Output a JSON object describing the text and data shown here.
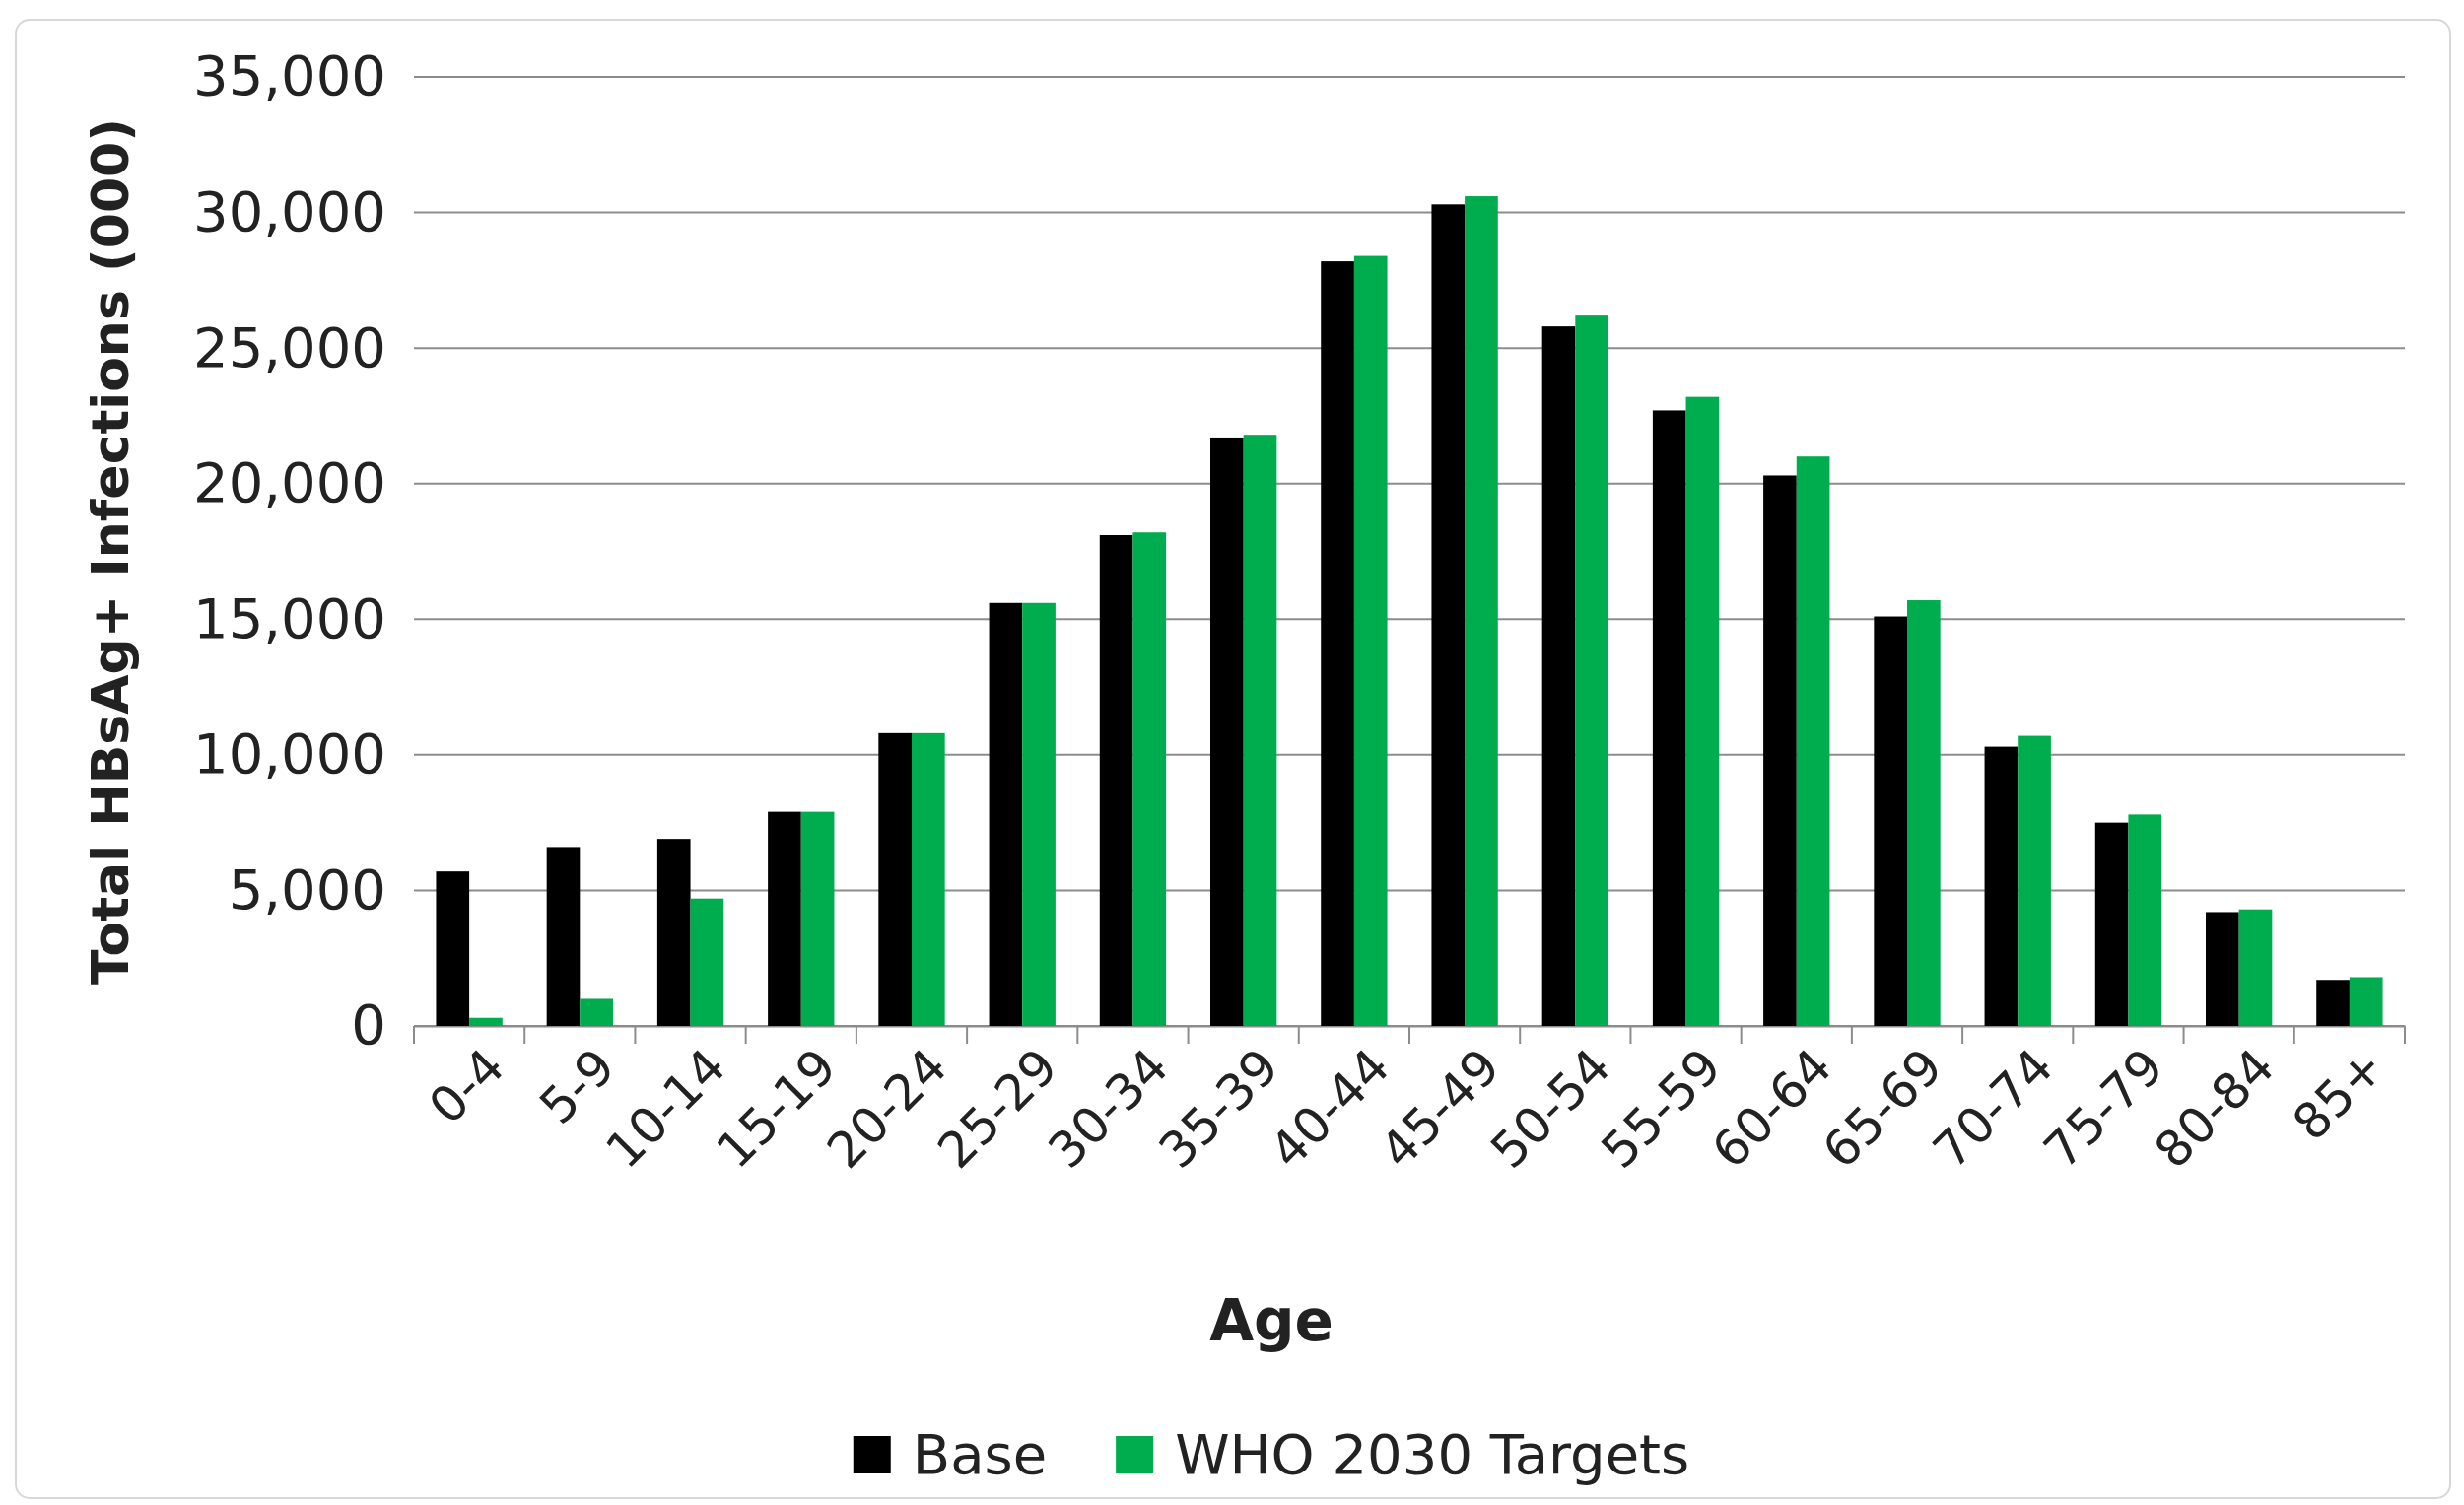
{
  "chart_data": {
    "type": "bar",
    "xlabel": "Age",
    "ylabel": "Total HBsAg+ Infections (000)",
    "categories": [
      "0-4",
      "5-9",
      "10-14",
      "15-19",
      "20-24",
      "25-29",
      "30-34",
      "35-39",
      "40-44",
      "45-49",
      "50-54",
      "55-59",
      "60-64",
      "65-69",
      "70-74",
      "75-79",
      "80-84",
      "85+"
    ],
    "series": [
      {
        "name": "Base",
        "color": "#000000",
        "values": [
          5700,
          6600,
          6900,
          7900,
          10800,
          15600,
          18100,
          21700,
          28200,
          30300,
          25800,
          22700,
          20300,
          15100,
          10300,
          7500,
          4200,
          1700
        ]
      },
      {
        "name": "WHO 2030 Targets",
        "color": "#00ad4e",
        "values": [
          300,
          1000,
          4700,
          7900,
          10800,
          15600,
          18200,
          21800,
          28400,
          30600,
          26200,
          23200,
          21000,
          15700,
          10700,
          7800,
          4300,
          1800
        ]
      }
    ],
    "ylim": [
      0,
      35000
    ],
    "yticks": [
      {
        "value": 0,
        "label": "0"
      },
      {
        "value": 5000,
        "label": "5,000"
      },
      {
        "value": 10000,
        "label": "10,000"
      },
      {
        "value": 15000,
        "label": "15,000"
      },
      {
        "value": 20000,
        "label": "20,000"
      },
      {
        "value": 25000,
        "label": "25,000"
      },
      {
        "value": 30000,
        "label": "30,000"
      },
      {
        "value": 35000,
        "label": "35,000"
      }
    ],
    "grid": "y",
    "legend": "bottom"
  }
}
